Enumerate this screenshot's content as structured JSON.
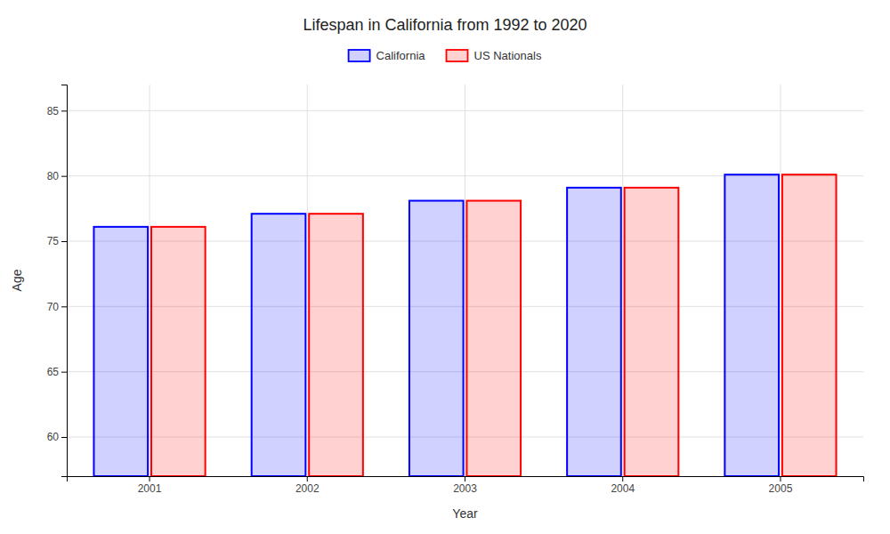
{
  "chart_data": {
    "type": "bar",
    "title": "Lifespan in California from 1992 to 2020",
    "x_label": "Year",
    "y_label": "Age",
    "categories": [
      "2001",
      "2002",
      "2003",
      "2004",
      "2005"
    ],
    "series": [
      {
        "name": "California",
        "color": "#0000ff",
        "values": [
          76.1,
          77.1,
          78.1,
          79.1,
          80.1
        ]
      },
      {
        "name": "US Nationals",
        "color": "#ff0000",
        "values": [
          76.1,
          77.1,
          78.1,
          79.1,
          80.1
        ]
      }
    ],
    "ylim": [
      57,
      87
    ],
    "yticks": [
      60,
      65,
      70,
      75,
      80,
      85
    ],
    "grid": true,
    "legend": "top"
  }
}
